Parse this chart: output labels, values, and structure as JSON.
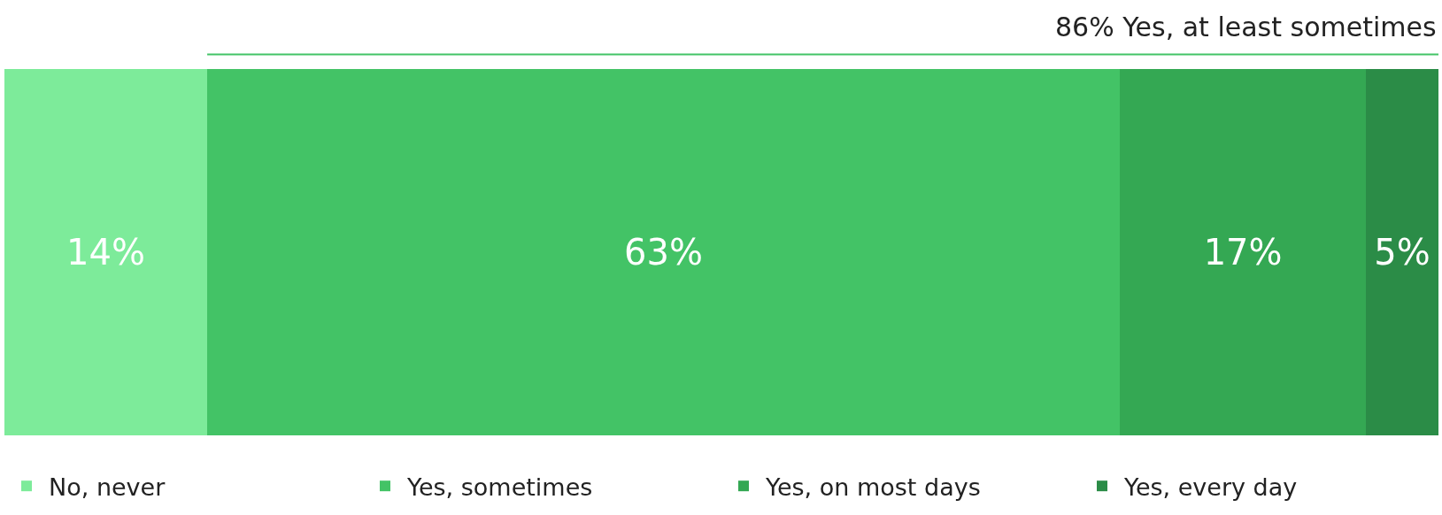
{
  "chart_data": {
    "type": "bar",
    "orientation": "horizontal",
    "stacked": true,
    "categories": [
      null
    ],
    "series": [
      {
        "name": "No, never",
        "color": "#7deb9a",
        "values": [
          14
        ],
        "value_labels": [
          "14%"
        ]
      },
      {
        "name": "Yes, sometimes",
        "color": "#43c366",
        "values": [
          63
        ],
        "value_labels": [
          "63%"
        ]
      },
      {
        "name": "Yes, on most days",
        "color": "#34a853",
        "values": [
          17
        ],
        "value_labels": [
          "17%"
        ]
      },
      {
        "name": "Yes, every day",
        "color": "#2b8c47",
        "values": [
          5
        ],
        "value_labels": [
          "5%"
        ]
      }
    ],
    "xlim": [
      0,
      99
    ],
    "legend": "bottom",
    "annotations": [
      "86% Yes, at least sometimes"
    ]
  }
}
